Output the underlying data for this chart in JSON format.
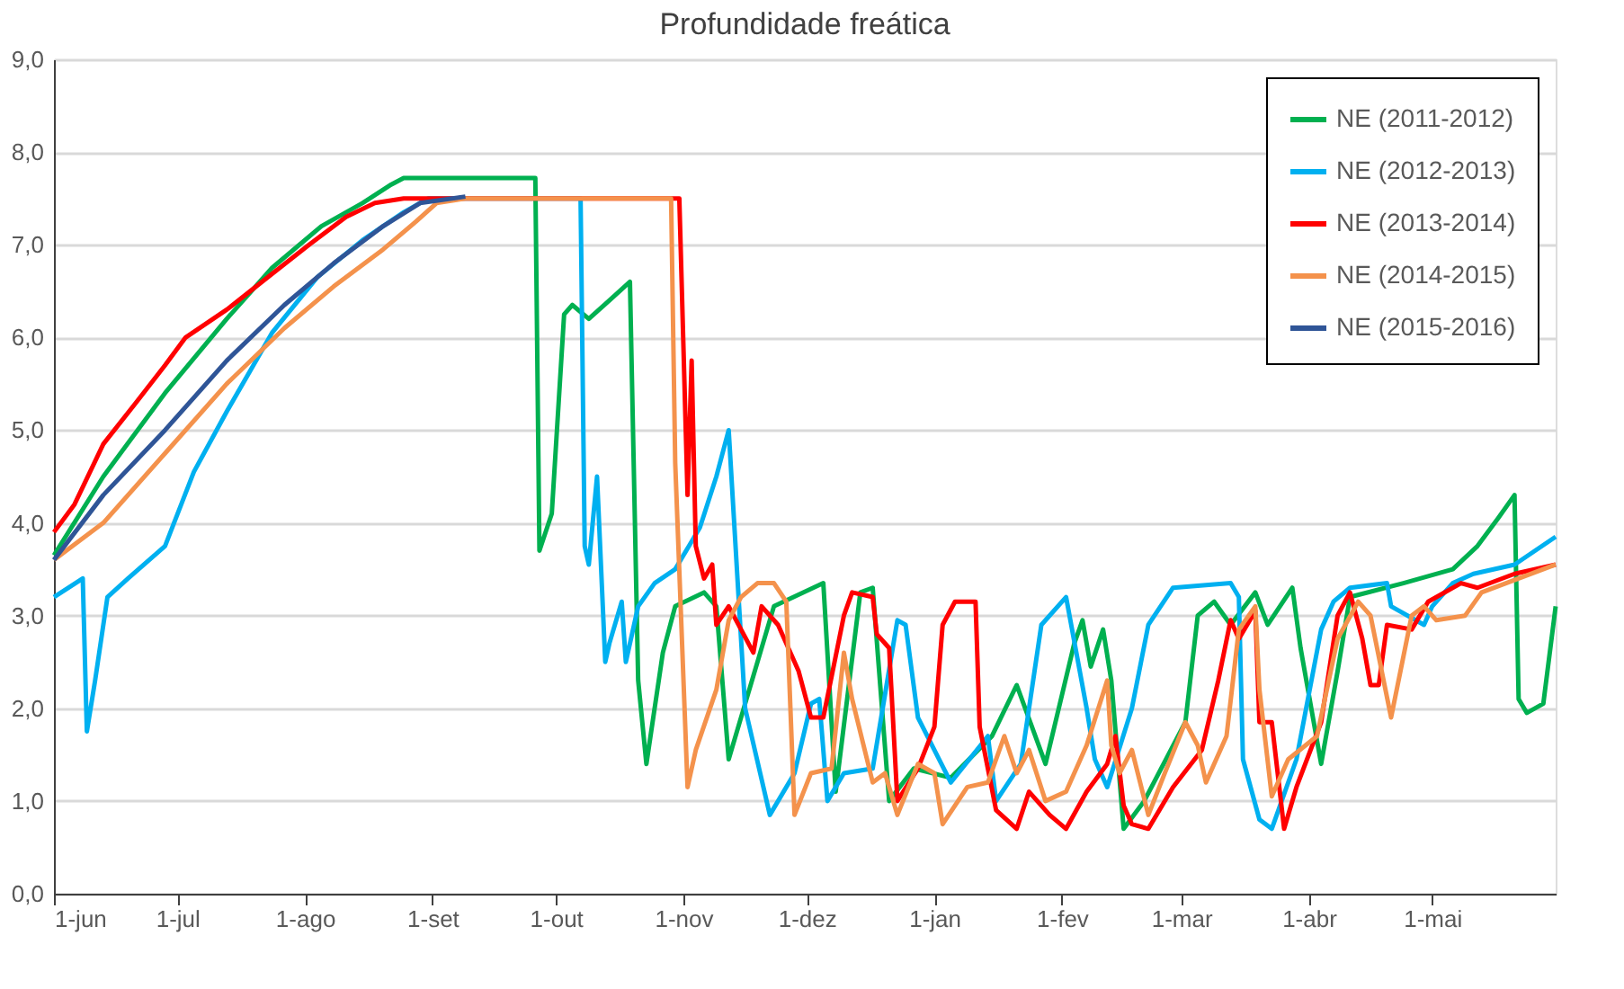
{
  "chart_data": {
    "type": "line",
    "title": "Profundidade freática",
    "xlim": [
      "2011-06-01",
      "2012-05-31"
    ],
    "xticks": [
      {
        "value": "2011-06-01",
        "label": "1-jun"
      },
      {
        "value": "2011-07-01",
        "label": "1-jul"
      },
      {
        "value": "2011-08-01",
        "label": "1-ago"
      },
      {
        "value": "2011-09-01",
        "label": "1-set"
      },
      {
        "value": "2011-10-01",
        "label": "1-out"
      },
      {
        "value": "2011-11-01",
        "label": "1-nov"
      },
      {
        "value": "2011-12-01",
        "label": "1-dez"
      },
      {
        "value": "2012-01-01",
        "label": "1-jan"
      },
      {
        "value": "2012-02-01",
        "label": "1-fev"
      },
      {
        "value": "2012-03-01",
        "label": "1-mar"
      },
      {
        "value": "2012-04-01",
        "label": "1-abr"
      },
      {
        "value": "2012-05-01",
        "label": "1-mai"
      }
    ],
    "ylim": [
      0,
      9
    ],
    "yticks": [
      {
        "value": 0,
        "label": "0,0"
      },
      {
        "value": 1,
        "label": "1,0"
      },
      {
        "value": 2,
        "label": "2,0"
      },
      {
        "value": 3,
        "label": "3,0"
      },
      {
        "value": 4,
        "label": "4,0"
      },
      {
        "value": 5,
        "label": "5,0"
      },
      {
        "value": 6,
        "label": "6,0"
      },
      {
        "value": 7,
        "label": "7,0"
      },
      {
        "value": 8,
        "label": "8,0"
      },
      {
        "value": 9,
        "label": "9,0"
      }
    ],
    "grid": "y",
    "legend": "top right",
    "series": [
      {
        "name": "NE (2011-2012)",
        "color": "#00b050",
        "x": [
          "2011-06-01",
          "2011-06-13",
          "2011-06-28",
          "2011-07-13",
          "2011-07-24",
          "2011-08-05",
          "2011-08-15",
          "2011-08-22",
          "2011-08-25",
          "2011-09-26",
          "2011-09-27",
          "2011-09-30",
          "2011-10-03",
          "2011-10-05",
          "2011-10-09",
          "2011-10-14",
          "2011-10-19",
          "2011-10-21",
          "2011-10-23",
          "2011-10-27",
          "2011-10-30",
          "2011-11-06",
          "2011-11-09",
          "2011-11-12",
          "2011-11-16",
          "2011-11-23",
          "2011-12-05",
          "2011-12-08",
          "2011-12-14",
          "2011-12-17",
          "2011-12-21",
          "2011-12-27",
          "2012-01-05",
          "2012-01-15",
          "2012-01-21",
          "2012-01-28",
          "2012-02-04",
          "2012-02-06",
          "2012-02-08",
          "2012-02-11",
          "2012-02-13",
          "2012-02-16",
          "2012-02-21",
          "2012-03-02",
          "2012-03-05",
          "2012-03-09",
          "2012-03-13",
          "2012-03-19",
          "2012-03-22",
          "2012-03-28",
          "2012-03-30",
          "2012-04-04",
          "2012-04-08",
          "2012-04-11",
          "2012-04-24",
          "2012-05-06",
          "2012-05-12",
          "2012-05-17",
          "2012-05-21",
          "2012-05-22",
          "2012-05-24",
          "2012-05-28",
          "2012-05-31"
        ],
        "values": [
          3.65,
          4.5,
          5.4,
          6.2,
          6.75,
          7.2,
          7.45,
          7.65,
          7.72,
          7.72,
          3.7,
          4.1,
          6.25,
          6.35,
          6.2,
          6.4,
          6.6,
          2.3,
          1.4,
          2.6,
          3.1,
          3.25,
          3.1,
          1.45,
          2.05,
          3.1,
          3.35,
          1.1,
          3.25,
          3.3,
          1.0,
          1.35,
          1.25,
          1.7,
          2.25,
          1.4,
          2.7,
          2.95,
          2.45,
          2.85,
          2.3,
          0.7,
          1.0,
          1.85,
          3.0,
          3.15,
          2.9,
          3.25,
          2.9,
          3.3,
          2.65,
          1.4,
          2.4,
          3.2,
          3.35,
          3.5,
          3.75,
          4.05,
          4.3,
          2.1,
          1.95,
          2.05,
          3.1
        ]
      },
      {
        "name": "NE (2012-2013)",
        "color": "#00b0f0",
        "x": [
          "2011-06-01",
          "2011-06-08",
          "2011-06-09",
          "2011-06-11",
          "2011-06-14",
          "2011-06-19",
          "2011-06-28",
          "2011-07-05",
          "2011-07-13",
          "2011-07-24",
          "2011-08-04",
          "2011-08-15",
          "2011-08-25",
          "2011-08-31",
          "2011-10-07",
          "2011-10-08",
          "2011-10-09",
          "2011-10-11",
          "2011-10-13",
          "2011-10-14",
          "2011-10-17",
          "2011-10-18",
          "2011-10-21",
          "2011-10-25",
          "2011-10-30",
          "2011-11-05",
          "2011-11-09",
          "2011-11-12",
          "2011-11-16",
          "2011-11-22",
          "2011-11-28",
          "2011-12-02",
          "2011-12-04",
          "2011-12-06",
          "2011-12-10",
          "2011-12-17",
          "2011-12-23",
          "2011-12-25",
          "2011-12-28",
          "2012-01-05",
          "2012-01-14",
          "2012-01-16",
          "2012-01-22",
          "2012-01-27",
          "2012-02-02",
          "2012-02-07",
          "2012-02-09",
          "2012-02-12",
          "2012-02-18",
          "2012-02-22",
          "2012-02-28",
          "2012-03-13",
          "2012-03-15",
          "2012-03-16",
          "2012-03-20",
          "2012-03-23",
          "2012-03-29",
          "2012-04-04",
          "2012-04-07",
          "2012-04-11",
          "2012-04-20",
          "2012-04-21",
          "2012-04-29",
          "2012-05-01",
          "2012-05-06",
          "2012-05-11",
          "2012-05-21",
          "2012-05-31"
        ],
        "values": [
          3.2,
          3.4,
          1.75,
          2.3,
          3.2,
          3.4,
          3.75,
          4.55,
          5.2,
          6.05,
          6.65,
          7.05,
          7.35,
          7.5,
          7.5,
          3.75,
          3.55,
          4.5,
          2.5,
          2.7,
          3.15,
          2.5,
          3.1,
          3.35,
          3.5,
          3.95,
          4.5,
          5.0,
          2.0,
          0.85,
          1.3,
          2.05,
          2.1,
          1.0,
          1.3,
          1.35,
          2.95,
          2.9,
          1.9,
          1.2,
          1.7,
          1.0,
          1.4,
          2.9,
          3.2,
          2.0,
          1.45,
          1.15,
          2.0,
          2.9,
          3.3,
          3.35,
          3.2,
          1.45,
          0.8,
          0.7,
          1.45,
          2.85,
          3.15,
          3.3,
          3.35,
          3.1,
          2.9,
          3.1,
          3.35,
          3.45,
          3.55,
          3.85
        ]
      },
      {
        "name": "NE (2013-2014)",
        "color": "#ff0000",
        "x": [
          "2011-06-01",
          "2011-06-06",
          "2011-06-13",
          "2011-06-21",
          "2011-06-28",
          "2011-07-03",
          "2011-07-13",
          "2011-07-23",
          "2011-08-02",
          "2011-08-11",
          "2011-08-18",
          "2011-08-25",
          "2011-10-31",
          "2011-11-02",
          "2011-11-03",
          "2011-11-04",
          "2011-11-06",
          "2011-11-08",
          "2011-11-09",
          "2011-11-12",
          "2011-11-18",
          "2011-11-20",
          "2011-11-24",
          "2011-11-29",
          "2011-12-02",
          "2011-12-05",
          "2011-12-10",
          "2011-12-12",
          "2011-12-17",
          "2011-12-18",
          "2011-12-21",
          "2011-12-23",
          "2011-12-28",
          "2012-01-01",
          "2012-01-03",
          "2012-01-06",
          "2012-01-11",
          "2012-01-12",
          "2012-01-16",
          "2012-01-21",
          "2012-01-24",
          "2012-01-29",
          "2012-02-02",
          "2012-02-07",
          "2012-02-12",
          "2012-02-14",
          "2012-02-16",
          "2012-02-18",
          "2012-02-22",
          "2012-02-28",
          "2012-03-06",
          "2012-03-10",
          "2012-03-13",
          "2012-03-15",
          "2012-03-19",
          "2012-03-20",
          "2012-03-23",
          "2012-03-26",
          "2012-03-29",
          "2012-04-04",
          "2012-04-08",
          "2012-04-11",
          "2012-04-14",
          "2012-04-16",
          "2012-04-18",
          "2012-04-20",
          "2012-04-26",
          "2012-04-30",
          "2012-05-08",
          "2012-05-12",
          "2012-05-21",
          "2012-05-31"
        ],
        "values": [
          3.9,
          4.2,
          4.85,
          5.3,
          5.7,
          6.0,
          6.3,
          6.65,
          7.0,
          7.3,
          7.45,
          7.5,
          7.5,
          4.3,
          5.75,
          3.75,
          3.4,
          3.55,
          2.9,
          3.1,
          2.6,
          3.1,
          2.9,
          2.4,
          1.9,
          1.9,
          3.0,
          3.25,
          3.2,
          2.8,
          2.65,
          1.0,
          1.35,
          1.8,
          2.9,
          3.15,
          3.15,
          1.8,
          0.9,
          0.7,
          1.1,
          0.85,
          0.7,
          1.1,
          1.4,
          1.7,
          0.95,
          0.75,
          0.7,
          1.15,
          1.55,
          2.3,
          2.95,
          2.75,
          3.05,
          1.85,
          1.85,
          0.7,
          1.15,
          1.85,
          3.0,
          3.25,
          2.75,
          2.25,
          2.25,
          2.9,
          2.85,
          3.15,
          3.35,
          3.3,
          3.45,
          3.55
        ]
      },
      {
        "name": "NE (2014-2015)",
        "color": "#f4924c",
        "x": [
          "2011-06-01",
          "2011-06-13",
          "2011-06-28",
          "2011-07-13",
          "2011-07-27",
          "2011-08-08",
          "2011-08-20",
          "2011-08-28",
          "2011-09-02",
          "2011-09-09",
          "2011-10-29",
          "2011-10-30",
          "2011-11-02",
          "2011-11-04",
          "2011-11-09",
          "2011-11-12",
          "2011-11-15",
          "2011-11-19",
          "2011-11-23",
          "2011-11-26",
          "2011-11-28",
          "2011-12-02",
          "2011-12-07",
          "2011-12-10",
          "2011-12-12",
          "2011-12-17",
          "2011-12-20",
          "2011-12-23",
          "2011-12-28",
          "2012-01-01",
          "2012-01-03",
          "2012-01-09",
          "2012-01-14",
          "2012-01-18",
          "2012-01-21",
          "2012-01-24",
          "2012-01-28",
          "2012-02-02",
          "2012-02-07",
          "2012-02-12",
          "2012-02-13",
          "2012-02-15",
          "2012-02-18",
          "2012-02-22",
          "2012-02-26",
          "2012-03-02",
          "2012-03-05",
          "2012-03-07",
          "2012-03-12",
          "2012-03-15",
          "2012-03-19",
          "2012-03-20",
          "2012-03-23",
          "2012-03-27",
          "2012-04-03",
          "2012-04-08",
          "2012-04-13",
          "2012-04-16",
          "2012-04-21",
          "2012-04-26",
          "2012-04-29",
          "2012-05-02",
          "2012-05-09",
          "2012-05-13",
          "2012-05-31"
        ],
        "values": [
          3.6,
          4.0,
          4.75,
          5.5,
          6.1,
          6.55,
          6.95,
          7.25,
          7.45,
          7.5,
          7.5,
          4.65,
          1.15,
          1.55,
          2.2,
          2.95,
          3.2,
          3.35,
          3.35,
          3.15,
          0.85,
          1.3,
          1.35,
          2.6,
          2.1,
          1.2,
          1.3,
          0.85,
          1.4,
          1.3,
          0.75,
          1.15,
          1.2,
          1.7,
          1.3,
          1.55,
          1.0,
          1.1,
          1.6,
          2.3,
          1.6,
          1.3,
          1.55,
          0.85,
          1.3,
          1.85,
          1.6,
          1.2,
          1.7,
          2.85,
          3.1,
          2.2,
          1.05,
          1.45,
          1.7,
          2.75,
          3.15,
          3.0,
          1.9,
          3.0,
          3.1,
          2.95,
          3.0,
          3.25,
          3.55
        ]
      },
      {
        "name": "NE (2015-2016)",
        "color": "#2f5597",
        "x": [
          "2011-06-01",
          "2011-06-13",
          "2011-06-28",
          "2011-07-13",
          "2011-07-27",
          "2011-08-08",
          "2011-08-20",
          "2011-08-29",
          "2011-09-09"
        ],
        "values": [
          3.6,
          4.3,
          5.0,
          5.75,
          6.35,
          6.8,
          7.2,
          7.45,
          7.52
        ]
      }
    ]
  }
}
